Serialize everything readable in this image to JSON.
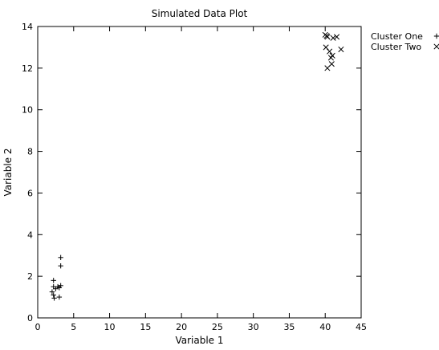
{
  "chart_data": {
    "type": "scatter",
    "title": "Simulated Data Plot",
    "xlabel": "Variable 1",
    "ylabel": "Variable 2",
    "xlim": [
      0,
      45
    ],
    "ylim": [
      0,
      14
    ],
    "xticks": [
      0,
      5,
      10,
      15,
      20,
      25,
      30,
      35,
      40,
      45
    ],
    "yticks": [
      0,
      2,
      4,
      6,
      8,
      10,
      12,
      14
    ],
    "grid": false,
    "legend_position": "outside-top-right",
    "series": [
      {
        "name": "Cluster One",
        "marker": "plus",
        "color": "#000000",
        "points": [
          [
            2.2,
            1.1
          ],
          [
            2.2,
            1.5
          ],
          [
            2.2,
            1.8
          ],
          [
            2.0,
            1.25
          ],
          [
            2.5,
            1.4
          ],
          [
            2.8,
            1.5
          ],
          [
            3.0,
            1.45
          ],
          [
            3.2,
            1.55
          ],
          [
            3.2,
            2.5
          ],
          [
            3.2,
            2.9
          ],
          [
            3.0,
            1.0
          ],
          [
            2.3,
            0.95
          ]
        ]
      },
      {
        "name": "Cluster Two",
        "marker": "cross",
        "color": "#000000",
        "points": [
          [
            40.0,
            13.6
          ],
          [
            40.2,
            13.55
          ],
          [
            40.3,
            13.5
          ],
          [
            40.1,
            13.0
          ],
          [
            40.6,
            12.8
          ],
          [
            41.0,
            12.6
          ],
          [
            40.8,
            12.5
          ],
          [
            41.1,
            13.45
          ],
          [
            41.6,
            13.5
          ],
          [
            42.2,
            12.9
          ],
          [
            40.3,
            12.0
          ],
          [
            40.9,
            12.2
          ]
        ]
      }
    ]
  }
}
